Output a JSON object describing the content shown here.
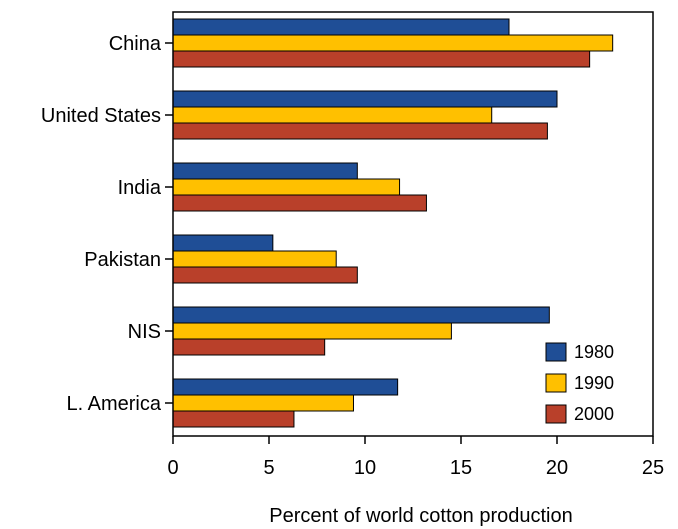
{
  "chart_data": {
    "type": "bar",
    "orientation": "horizontal",
    "categories": [
      "China",
      "United States",
      "India",
      "Pakistan",
      "NIS",
      "L. America"
    ],
    "series": [
      {
        "name": "1980",
        "color": "#1f4e96",
        "values": [
          17.5,
          20.0,
          9.6,
          5.2,
          19.6,
          11.7
        ]
      },
      {
        "name": "1990",
        "color": "#ffc000",
        "values": [
          22.9,
          16.6,
          11.8,
          8.5,
          14.5,
          9.4
        ]
      },
      {
        "name": "2000",
        "color": "#b9402a",
        "values": [
          21.7,
          19.5,
          13.2,
          9.6,
          7.9,
          6.3
        ]
      }
    ],
    "xlabel": "Percent of world cotton production",
    "ylabel": "",
    "xlim": [
      0,
      25
    ],
    "xticks": [
      "0",
      "5",
      "10",
      "15",
      "20",
      "25"
    ],
    "grid": false,
    "legend": "bottom-right"
  }
}
